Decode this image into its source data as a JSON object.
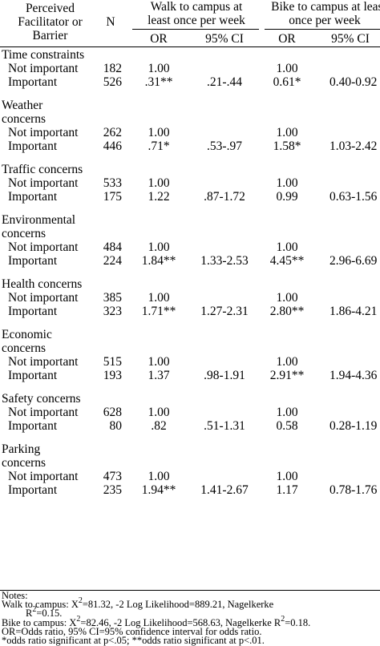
{
  "header": {
    "factor": [
      "Perceived",
      "Facilitator or",
      "Barrier"
    ],
    "n": "N",
    "walk": [
      "Walk to campus at",
      "least once per week"
    ],
    "bike": [
      "Bike to campus at least",
      "once per week"
    ],
    "or": "OR",
    "ci": "95% CI"
  },
  "groups": [
    {
      "title": [
        "Time constraints"
      ],
      "rows": [
        {
          "label": "Not important",
          "n": "182",
          "walk_or": "1.00",
          "walk_ci": "",
          "bike_or": "1.00",
          "bike_ci": ""
        },
        {
          "label": "Important",
          "n": "526",
          "walk_or": ".31**",
          "walk_ci": ".21-.44",
          "bike_or": "0.61*",
          "bike_ci": "0.40-0.92"
        }
      ]
    },
    {
      "title": [
        "Weather",
        "concerns"
      ],
      "rows": [
        {
          "label": "Not important",
          "n": "262",
          "walk_or": "1.00",
          "walk_ci": "",
          "bike_or": "1.00",
          "bike_ci": ""
        },
        {
          "label": "Important",
          "n": "446",
          "walk_or": ".71*",
          "walk_ci": ".53-.97",
          "bike_or": "1.58*",
          "bike_ci": "1.03-2.42"
        }
      ]
    },
    {
      "title": [
        "Traffic concerns"
      ],
      "rows": [
        {
          "label": "Not important",
          "n": "533",
          "walk_or": "1.00",
          "walk_ci": "",
          "bike_or": "1.00",
          "bike_ci": ""
        },
        {
          "label": "Important",
          "n": "175",
          "walk_or": "1.22",
          "walk_ci": ".87-1.72",
          "bike_or": "0.99",
          "bike_ci": "0.63-1.56"
        }
      ]
    },
    {
      "title": [
        "Environmental",
        "concerns"
      ],
      "rows": [
        {
          "label": "Not important",
          "n": "484",
          "walk_or": "1.00",
          "walk_ci": "",
          "bike_or": "1.00",
          "bike_ci": ""
        },
        {
          "label": "Important",
          "n": "224",
          "walk_or": "1.84**",
          "walk_ci": "1.33-2.53",
          "bike_or": "4.45**",
          "bike_ci": "2.96-6.69"
        }
      ]
    },
    {
      "title": [
        "Health concerns"
      ],
      "rows": [
        {
          "label": "Not important",
          "n": "385",
          "walk_or": "1.00",
          "walk_ci": "",
          "bike_or": "1.00",
          "bike_ci": ""
        },
        {
          "label": "Important",
          "n": "323",
          "walk_or": "1.71**",
          "walk_ci": "1.27-2.31",
          "bike_or": "2.80**",
          "bike_ci": "1.86-4.21"
        }
      ]
    },
    {
      "title": [
        "Economic",
        "concerns"
      ],
      "rows": [
        {
          "label": "Not important",
          "n": "515",
          "walk_or": "1.00",
          "walk_ci": "",
          "bike_or": "1.00",
          "bike_ci": ""
        },
        {
          "label": "Important",
          "n": "193",
          "walk_or": "1.37",
          "walk_ci": ".98-1.91",
          "bike_or": "2.91**",
          "bike_ci": "1.94-4.36"
        }
      ]
    },
    {
      "title": [
        "Safety concerns"
      ],
      "rows": [
        {
          "label": "Not important",
          "n": "628",
          "walk_or": "1.00",
          "walk_ci": "",
          "bike_or": "1.00",
          "bike_ci": ""
        },
        {
          "label": "Important",
          "n": "80",
          "walk_or": ".82",
          "walk_ci": ".51-1.31",
          "bike_or": "0.58",
          "bike_ci": "0.28-1.19"
        }
      ]
    },
    {
      "title": [
        "Parking",
        "concerns"
      ],
      "rows": [
        {
          "label": "Not important",
          "n": "473",
          "walk_or": "1.00",
          "walk_ci": "",
          "bike_or": "1.00",
          "bike_ci": ""
        },
        {
          "label": "Important",
          "n": "235",
          "walk_or": "1.94**",
          "walk_ci": "1.41-2.67",
          "bike_or": "1.17",
          "bike_ci": "0.78-1.76"
        }
      ]
    }
  ],
  "notes": {
    "heading": "Notes:",
    "walk_a": "Walk to campus: X",
    "walk_sup": "2",
    "walk_b": "=81.32, -2 Log Likelihood=889.21, Nagelkerke",
    "walk_c": "R",
    "walk_c_sup": "2",
    "walk_d": "=0.15.",
    "bike_a": "Bike to campus: X",
    "bike_sup": "2",
    "bike_b": "=82.46, -2 Log Likelihood=568.63, Nagelkerke R",
    "bike_sup2": "2",
    "bike_c": "=0.18.",
    "or_note": "OR=Odds ratio, 95% CI=95% confidence interval for odds ratio.",
    "sig_note": "*odds ratio significant at p<.05; **odds ratio significant at p<.01."
  }
}
